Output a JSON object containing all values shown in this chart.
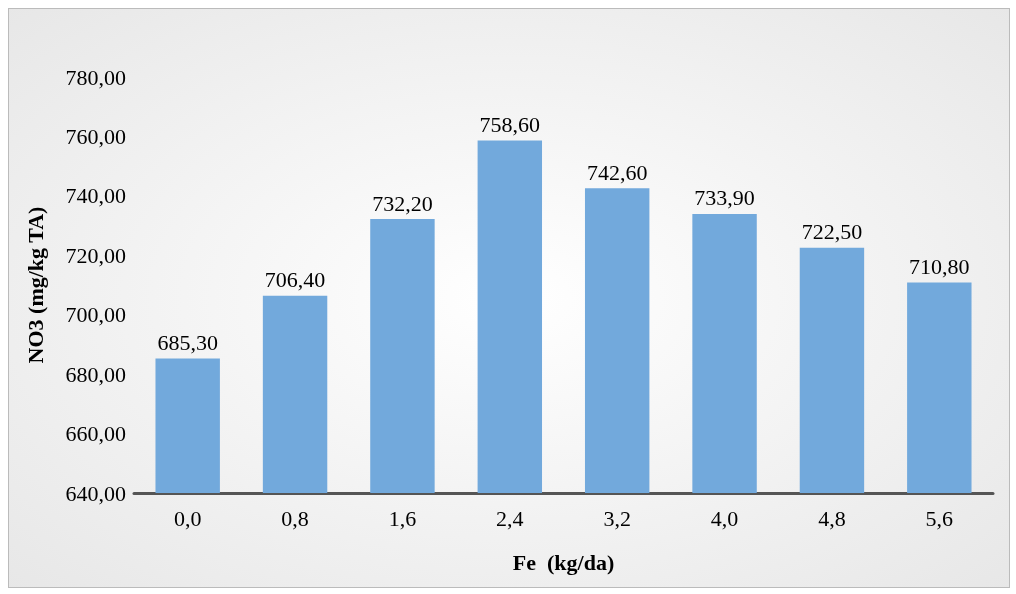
{
  "chart_data": {
    "type": "bar",
    "xlabel": "Fe  (kg/da)",
    "ylabel": "NO3 (mg/kg TA)",
    "categories": [
      "0,0",
      "0,8",
      "1,6",
      "2,4",
      "3,2",
      "4,0",
      "4,8",
      "5,6"
    ],
    "values": [
      685.3,
      706.4,
      732.2,
      758.6,
      742.6,
      733.9,
      722.5,
      710.8
    ],
    "value_labels": [
      "685,30",
      "706,40",
      "732,20",
      "758,60",
      "742,60",
      "733,90",
      "722,50",
      "710,80"
    ],
    "color": "#72a9dc",
    "ylim": [
      640,
      780
    ],
    "yticks": [
      {
        "value": 640,
        "label": "640,00"
      },
      {
        "value": 660,
        "label": "660,00"
      },
      {
        "value": 680,
        "label": "680,00"
      },
      {
        "value": 700,
        "label": "700,00"
      },
      {
        "value": 720,
        "label": "720,00"
      },
      {
        "value": 740,
        "label": "740,00"
      },
      {
        "value": 760,
        "label": "760,00"
      },
      {
        "value": 780,
        "label": "780,00"
      }
    ],
    "grid": false
  }
}
